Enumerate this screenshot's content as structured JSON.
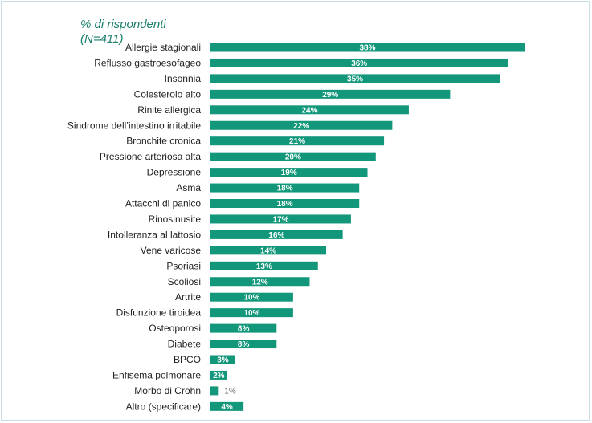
{
  "chart_data": {
    "type": "bar",
    "orientation": "horizontal",
    "title": "% di rispondenti",
    "subtitle": "(N=411)",
    "bar_color": "#12977a",
    "title_color": "#1a7f6b",
    "categories": [
      "Allergie stagionali",
      "Reflusso gastroesofageo",
      "Insonnia",
      "Colesterolo alto",
      "Rinite allergica",
      "Sindrome dell’intestino irritabile",
      "Bronchite cronica",
      "Pressione arteriosa alta",
      "Depressione",
      "Asma",
      "Attacchi di panico",
      "Rinosinusite",
      "Intolleranza al lattosio",
      "Vene varicose",
      "Psoriasi",
      "Scoliosi",
      "Artrite",
      "Disfunzione tiroidea",
      "Osteoporosi",
      "Diabete",
      "BPCO",
      "Enfisema polmonare",
      "Morbo di Crohn",
      "Altro (specificare)"
    ],
    "values": [
      38,
      36,
      35,
      29,
      24,
      22,
      21,
      20,
      19,
      18,
      18,
      17,
      16,
      14,
      13,
      12,
      10,
      10,
      8,
      8,
      3,
      2,
      1,
      4
    ],
    "value_labels": [
      "38%",
      "36%",
      "35%",
      "29%",
      "24%",
      "22%",
      "21%",
      "20%",
      "19%",
      "18%",
      "18%",
      "17%",
      "16%",
      "14%",
      "13%",
      "12%",
      "10%",
      "10%",
      "8%",
      "8%",
      "3%",
      "2%",
      "1%",
      "4%"
    ],
    "xlim": [
      0,
      38
    ],
    "grid": false,
    "legend": "none"
  }
}
